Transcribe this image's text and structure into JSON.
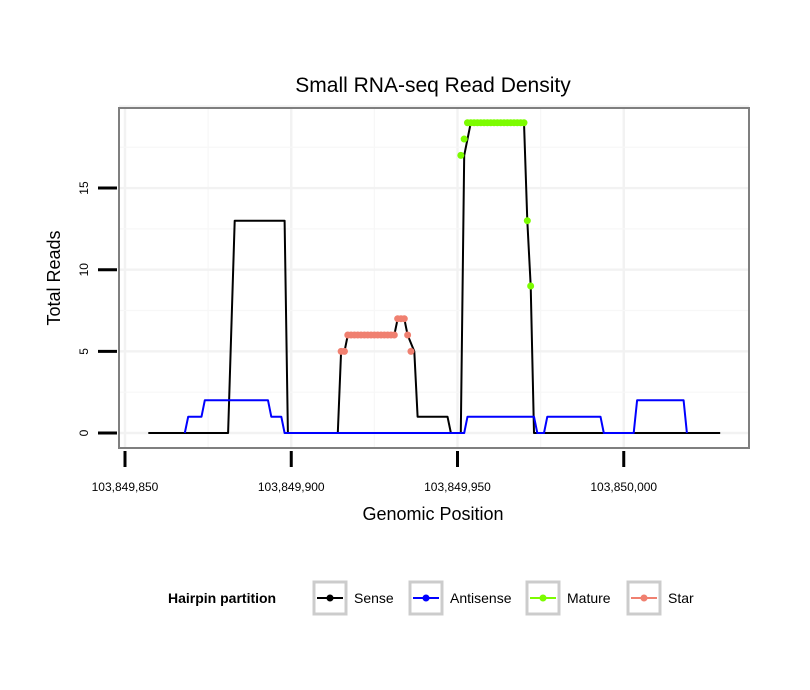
{
  "chart_data": {
    "type": "line",
    "title": "Small RNA-seq Read Density",
    "xlabel": "Genomic Position",
    "ylabel": "Total Reads",
    "xlim": [
      103849850,
      103850040
    ],
    "ylim": [
      -1,
      20
    ],
    "x_ticks": [
      103849850,
      103849900,
      103849950,
      103850000
    ],
    "x_tick_labels": [
      "103,849,850",
      "103,849,900",
      "103,849,950",
      "103,850,000"
    ],
    "y_ticks": [
      0,
      5,
      10,
      15
    ],
    "y_tick_labels": [
      "0",
      "5",
      "10",
      "15"
    ],
    "grid": true,
    "legend": {
      "title": "Hairpin partition",
      "position": "bottom",
      "entries": [
        {
          "label": "Sense",
          "color": "#000000"
        },
        {
          "label": "Antisense",
          "color": "#0000ff"
        },
        {
          "label": "Mature",
          "color": "#7cfc00"
        },
        {
          "label": "Star",
          "color": "#f08070"
        }
      ]
    },
    "series": [
      {
        "name": "Sense",
        "color": "#000000",
        "style": "line",
        "x": [
          103849857,
          103849881,
          103849883,
          103849898,
          103849899,
          103849914,
          103849915,
          103849916,
          103849917,
          103849931,
          103849932,
          103849934,
          103849935,
          103849937,
          103849938,
          103849947,
          103849948,
          103849951,
          103849952,
          103849953,
          103849954,
          103849970,
          103849971,
          103849972,
          103849973,
          103850029
        ],
        "y": [
          0,
          0,
          13,
          13,
          0,
          0,
          5,
          5,
          6,
          6,
          7,
          7,
          6,
          5,
          1,
          1,
          0,
          0,
          17,
          18,
          19,
          19,
          13,
          9,
          0,
          0
        ]
      },
      {
        "name": "Antisense",
        "color": "#0000ff",
        "style": "line",
        "x": [
          103849868,
          103849869,
          103849873,
          103849874,
          103849893,
          103849894,
          103849897,
          103849898,
          103849952,
          103849953,
          103849973,
          103849974,
          103849976,
          103849977,
          103849993,
          103849994,
          103850003,
          103850004,
          103850018,
          103850019
        ],
        "y": [
          0,
          1,
          1,
          2,
          2,
          1,
          1,
          0,
          0,
          1,
          1,
          0,
          0,
          1,
          1,
          0,
          0,
          2,
          2,
          0
        ]
      },
      {
        "name": "Mature",
        "color": "#7cfc00",
        "style": "points",
        "x": [
          103849951,
          103849952,
          103849953,
          103849954,
          103849955,
          103849956,
          103849957,
          103849958,
          103849959,
          103849960,
          103849961,
          103849962,
          103849963,
          103849964,
          103849965,
          103849966,
          103849967,
          103849968,
          103849969,
          103849970,
          103849971,
          103849972
        ],
        "y": [
          17,
          18,
          19,
          19,
          19,
          19,
          19,
          19,
          19,
          19,
          19,
          19,
          19,
          19,
          19,
          19,
          19,
          19,
          19,
          19,
          13,
          9
        ]
      },
      {
        "name": "Star",
        "color": "#f08070",
        "style": "points",
        "x": [
          103849915,
          103849916,
          103849917,
          103849918,
          103849919,
          103849920,
          103849921,
          103849922,
          103849923,
          103849924,
          103849925,
          103849926,
          103849927,
          103849928,
          103849929,
          103849930,
          103849931,
          103849932,
          103849933,
          103849934,
          103849935,
          103849936
        ],
        "y": [
          5,
          5,
          6,
          6,
          6,
          6,
          6,
          6,
          6,
          6,
          6,
          6,
          6,
          6,
          6,
          6,
          6,
          7,
          7,
          7,
          6,
          5
        ]
      }
    ]
  }
}
